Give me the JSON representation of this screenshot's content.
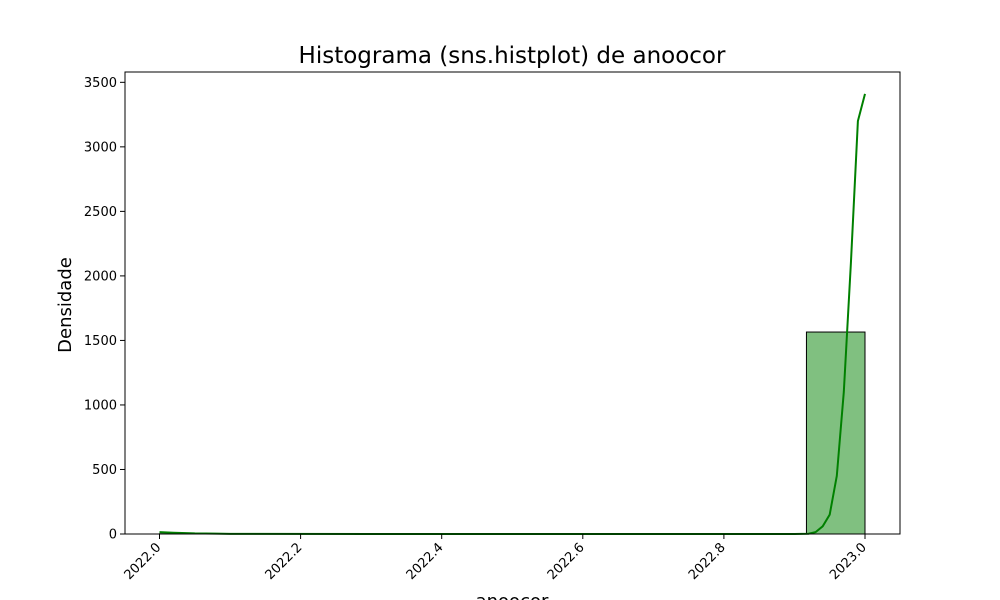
{
  "chart_data": {
    "type": "bar",
    "title": "Histograma (sns.histplot) de anoocor",
    "xlabel": "anoocor",
    "ylabel": "Densidade",
    "xlim": [
      1999.95,
      2023.05
    ],
    "ylim": [
      0,
      3580
    ],
    "x_ticks": [
      2022.0,
      2022.2,
      2022.4,
      2022.6,
      2022.8,
      2023.0
    ],
    "x_tick_labels": [
      "2022.0",
      "2022.2",
      "2022.4",
      "2022.6",
      "2022.8",
      "2023.0"
    ],
    "y_ticks": [
      0,
      500,
      1000,
      1500,
      2000,
      2500,
      3000,
      3500
    ],
    "y_tick_labels": [
      "0",
      "500",
      "1000",
      "1500",
      "2000",
      "2500",
      "3000",
      "3500"
    ],
    "grid": false,
    "bars": [
      {
        "x0": 2022.0,
        "x1": 2022.083,
        "value": 2
      },
      {
        "x0": 2022.917,
        "x1": 2023.0,
        "value": 1565
      }
    ],
    "kde_line": {
      "x": [
        2022.0,
        2022.02,
        2022.05,
        2022.08,
        2022.1,
        2022.3,
        2022.5,
        2022.7,
        2022.9,
        2022.92,
        2022.93,
        2022.94,
        2022.95,
        2022.96,
        2022.97,
        2022.98,
        2022.99,
        2023.0
      ],
      "y": [
        15,
        10,
        5,
        3,
        1,
        0,
        0,
        0,
        0,
        2,
        15,
        60,
        150,
        450,
        1100,
        2100,
        3200,
        3410
      ]
    },
    "colors": {
      "bar_fill": "#80c080",
      "bar_edge": "#000000",
      "kde_line": "#008000",
      "axes": "#000000",
      "background": "#ffffff"
    }
  }
}
